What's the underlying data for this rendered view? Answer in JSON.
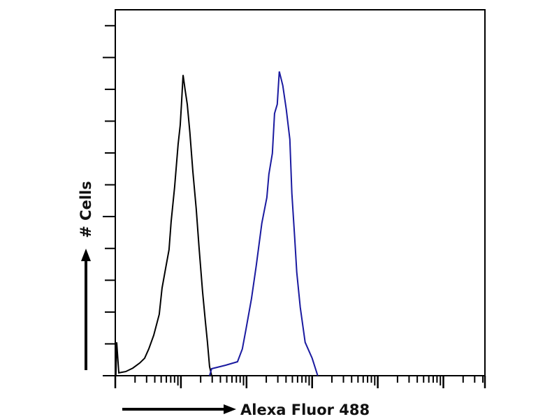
{
  "chart_data": {
    "type": "line",
    "title": "",
    "xlabel": "Alexa Fluor 488",
    "ylabel": "# Cells",
    "x_scale": "log",
    "xlim": [
      1,
      430000
    ],
    "ylim": [
      0,
      11.5
    ],
    "y_ticks": [
      1,
      2,
      3,
      4,
      5,
      6,
      7,
      8,
      9,
      10,
      11
    ],
    "y_major_ticks": [
      5,
      10
    ],
    "x_decades": [
      1,
      10,
      100,
      1000,
      10000,
      100000
    ],
    "grid": false,
    "legend": "none",
    "series": [
      {
        "color": "#000000",
        "x": [
          1.02,
          1.05,
          1.13,
          1.44,
          1.85,
          2.36,
          2.8,
          3.24,
          3.85,
          4.68,
          5.16,
          5.83,
          6.59,
          7.1,
          8.02,
          9.06,
          9.76,
          10.2,
          10.8,
          11.6,
          12.5,
          13.7,
          15.2,
          17.1,
          18.9,
          21.4,
          23.6,
          25.4,
          27.3,
          29.4
        ],
        "y": [
          0,
          1.05,
          0.09,
          0.13,
          0.24,
          0.4,
          0.55,
          0.84,
          1.27,
          1.93,
          2.75,
          3.36,
          3.96,
          4.84,
          5.93,
          7.27,
          7.87,
          8.53,
          9.45,
          8.97,
          8.53,
          7.65,
          6.42,
          5.25,
          4.02,
          2.64,
          1.71,
          1.05,
          0.29,
          0
        ]
      },
      {
        "color": "#1a1aa0",
        "x": [
          27.3,
          29.4,
          48,
          72.8,
          86.3,
          97.5,
          119,
          141,
          171,
          204,
          219,
          248,
          267,
          294,
          316,
          357,
          404,
          457,
          491,
          542,
          583,
          659,
          783,
          1000,
          1217
        ],
        "y": [
          0,
          0.22,
          0.33,
          0.44,
          0.84,
          1.43,
          2.42,
          3.47,
          4.79,
          5.6,
          6.33,
          6.99,
          8.24,
          8.53,
          9.56,
          9.12,
          8.37,
          7.43,
          5.73,
          4.35,
          3.25,
          2.15,
          1.05,
          0.55,
          0
        ]
      }
    ]
  }
}
